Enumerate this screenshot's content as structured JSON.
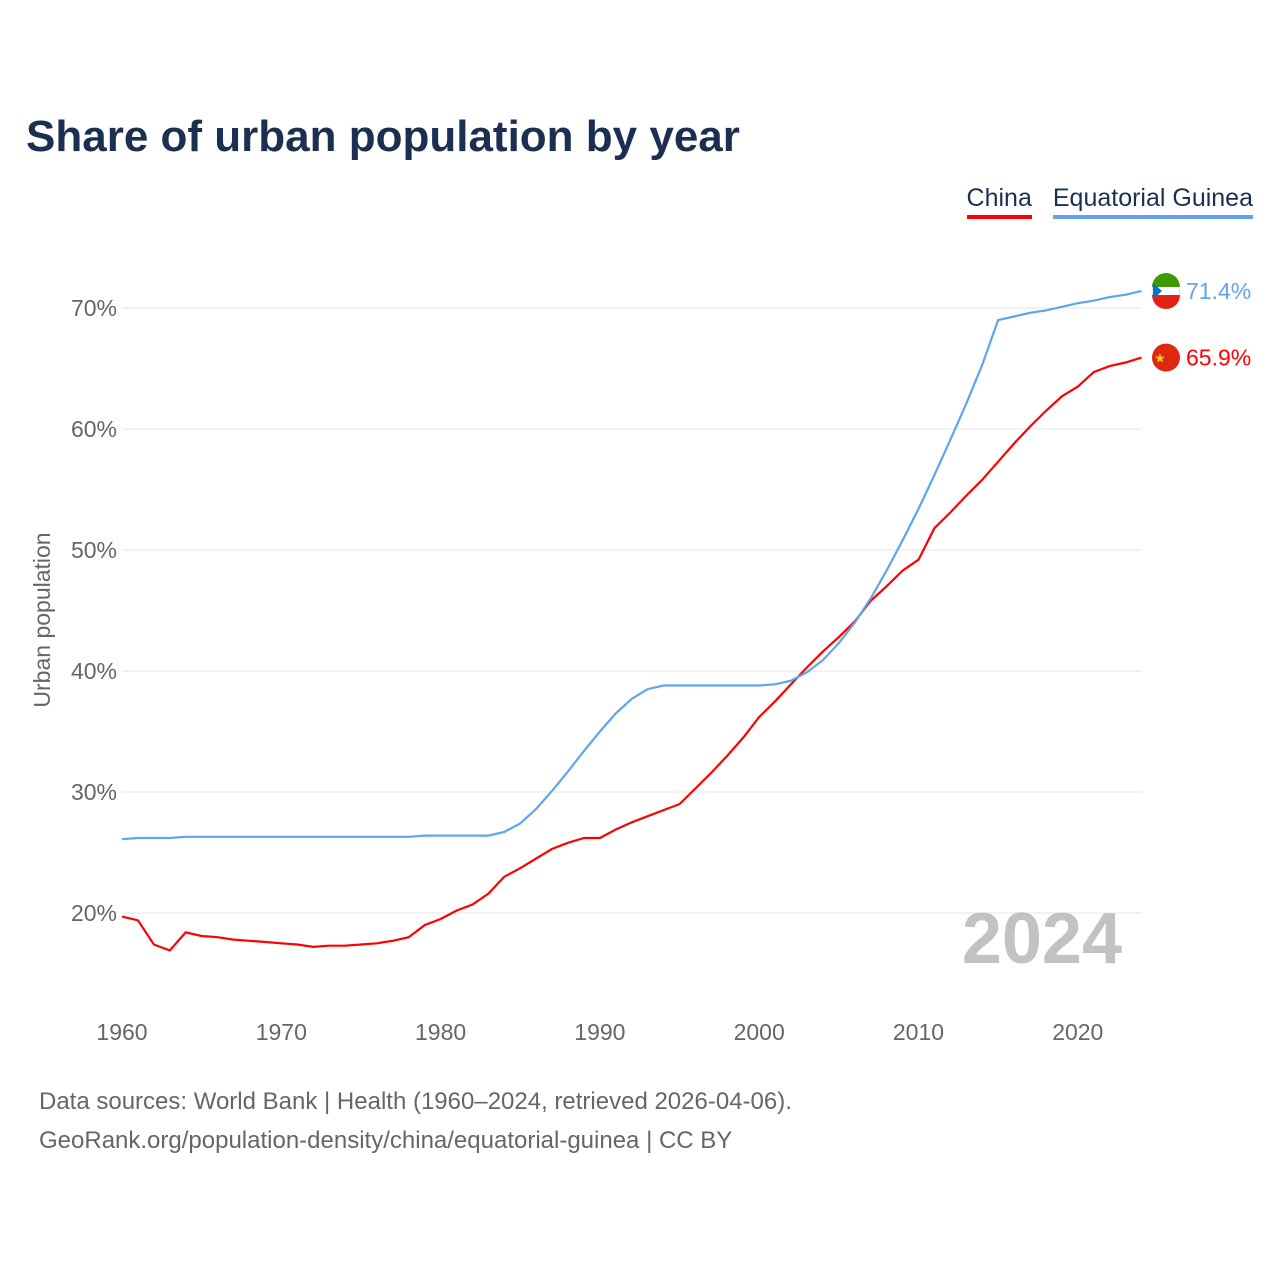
{
  "title": "Share of urban population by year",
  "legend": [
    {
      "name": "China",
      "color": "#ff0000"
    },
    {
      "name": "Equatorial Guinea",
      "color": "#5fa5ee"
    }
  ],
  "year_watermark": "2024",
  "footer": {
    "line1": "Data sources: World Bank | Health (1960–2024, retrieved 2026-04-06).",
    "line2": "GeoRank.org/population-density/china/equatorial-guinea | CC BY"
  },
  "chart_data": {
    "type": "line",
    "title": "Share of urban population by year",
    "xlabel": "",
    "ylabel": "Urban population",
    "xlim": [
      1960,
      2024
    ],
    "ylim": [
      13,
      75
    ],
    "yticks": [
      20,
      30,
      40,
      50,
      60,
      70
    ],
    "ytick_labels": [
      "20%",
      "30%",
      "40%",
      "50%",
      "60%",
      "70%"
    ],
    "xticks": [
      1960,
      1970,
      1980,
      1990,
      2000,
      2010,
      2020
    ],
    "xtick_labels": [
      "1960",
      "1970",
      "1980",
      "1990",
      "2000",
      "2010",
      "2020"
    ],
    "grid": true,
    "legend_position": "top-right",
    "x_start": 1960,
    "series": [
      {
        "name": "China",
        "color": "#ff0000",
        "end_label": "65.9%",
        "values": [
          19.7,
          19.4,
          17.4,
          16.9,
          18.4,
          18.1,
          18.0,
          17.8,
          17.7,
          17.6,
          17.5,
          17.4,
          17.2,
          17.3,
          17.3,
          17.4,
          17.5,
          17.7,
          18.0,
          19.0,
          19.5,
          20.2,
          20.7,
          21.6,
          23.0,
          23.7,
          24.5,
          25.3,
          25.8,
          26.2,
          26.2,
          26.9,
          27.5,
          28.0,
          28.5,
          29.0,
          30.3,
          31.6,
          33.0,
          34.5,
          36.2,
          37.5,
          38.9,
          40.3,
          41.6,
          42.8,
          44.1,
          45.8,
          47.0,
          48.3,
          49.2,
          51.8,
          53.1,
          54.5,
          55.8,
          57.3,
          58.8,
          60.2,
          61.5,
          62.7,
          63.5,
          64.7,
          65.2,
          65.5,
          65.9
        ]
      },
      {
        "name": "Equatorial Guinea",
        "color": "#5fa5ee",
        "end_label": "71.4%",
        "values": [
          26.1,
          26.2,
          26.2,
          26.2,
          26.3,
          26.3,
          26.3,
          26.3,
          26.3,
          26.3,
          26.3,
          26.3,
          26.3,
          26.3,
          26.3,
          26.3,
          26.3,
          26.3,
          26.3,
          26.4,
          26.4,
          26.4,
          26.4,
          26.4,
          26.7,
          27.4,
          28.6,
          30.1,
          31.7,
          33.4,
          35.0,
          36.5,
          37.7,
          38.5,
          38.8,
          38.8,
          38.8,
          38.8,
          38.8,
          38.8,
          38.8,
          38.9,
          39.2,
          39.9,
          40.9,
          42.3,
          44.0,
          46.0,
          48.3,
          50.8,
          53.4,
          56.2,
          59.1,
          62.1,
          65.3,
          69.0,
          69.3,
          69.6,
          69.8,
          70.1,
          70.4,
          70.6,
          70.9,
          71.1,
          71.4
        ]
      }
    ]
  }
}
